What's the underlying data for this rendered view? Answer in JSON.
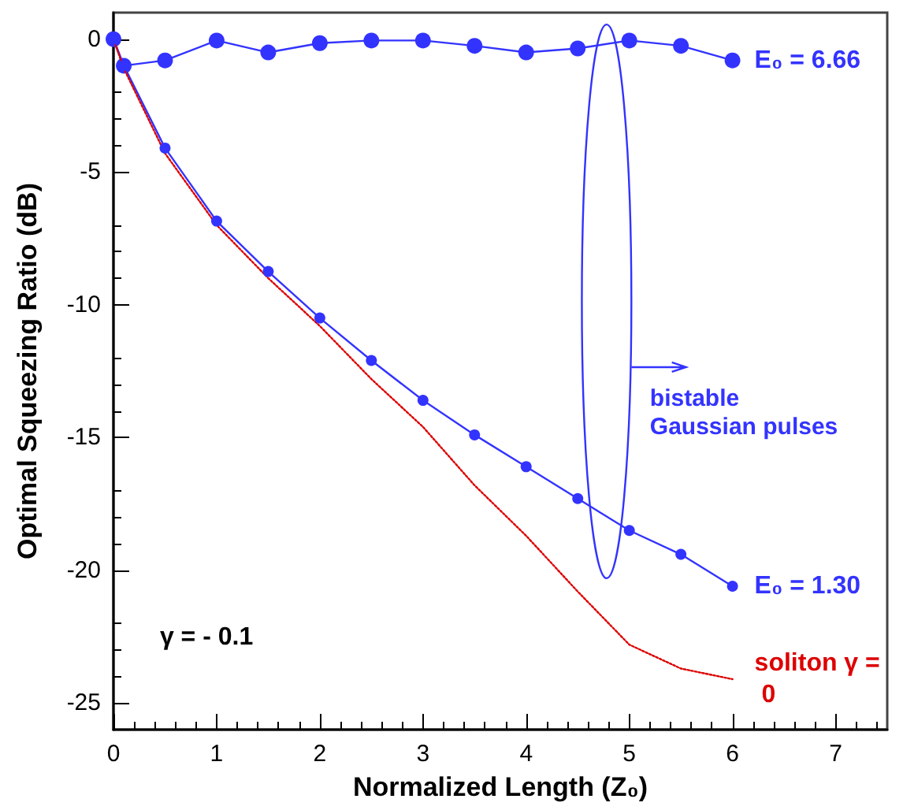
{
  "chart_data": {
    "type": "line",
    "xlabel": "Normalized Length (Z₀)",
    "ylabel": "Optimal Squeezing Ratio (dB)",
    "xlim": [
      0,
      7.5
    ],
    "xticks": [
      0,
      1,
      2,
      3,
      4,
      5,
      6,
      7
    ],
    "ylim": [
      -26,
      1
    ],
    "yticks": [
      -25,
      -20,
      -15,
      -10,
      -5,
      0
    ],
    "grid": false,
    "legend": false,
    "marker": "circle",
    "annotations": [
      "γ = - 0.1",
      "bistable\nGaussian pulses"
    ],
    "series": [
      {
        "name": "E₀ = 6.66",
        "color": "#3333ff",
        "x": [
          0,
          0.1,
          0.5,
          1,
          1.5,
          2,
          2.5,
          3,
          3.5,
          4,
          4.5,
          5,
          5.5,
          6
        ],
        "values": [
          0,
          -1.0,
          -0.8,
          -0.05,
          -0.5,
          -0.15,
          -0.05,
          -0.05,
          -0.25,
          -0.5,
          -0.35,
          -0.05,
          -0.25,
          -0.8
        ]
      },
      {
        "name": "E₀ = 1.30",
        "color": "#3333ff",
        "x": [
          0,
          0.1,
          0.5,
          1,
          1.5,
          2,
          2.5,
          3,
          3.5,
          4,
          4.5,
          5,
          5.5,
          6
        ],
        "values": [
          0,
          -1.0,
          -4.1,
          -6.85,
          -8.75,
          -10.5,
          -12.1,
          -13.6,
          -14.9,
          -16.1,
          -17.3,
          -18.5,
          -19.4,
          -20.6
        ]
      },
      {
        "name": "soliton γ = 0",
        "color": "#dd0000",
        "marker": "none",
        "line_style": "dotted",
        "x": [
          0,
          0.1,
          0.5,
          1,
          1.5,
          2,
          2.5,
          3,
          3.5,
          4,
          4.5,
          5,
          5.5,
          6
        ],
        "values": [
          0,
          -1.1,
          -4.3,
          -7.0,
          -9.0,
          -10.8,
          -12.8,
          -14.6,
          -16.8,
          -18.7,
          -20.8,
          -22.8,
          -23.7,
          -24.1
        ]
      }
    ]
  }
}
